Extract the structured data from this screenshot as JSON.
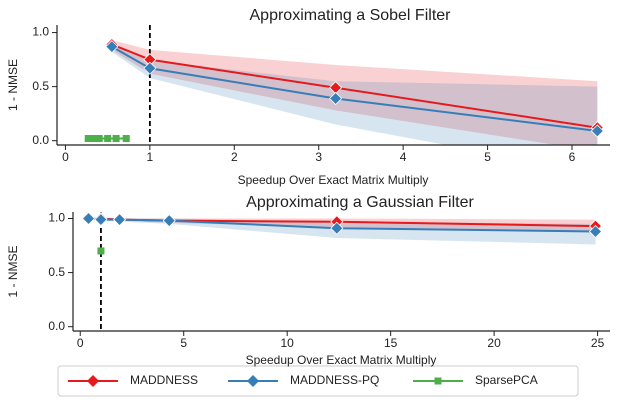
{
  "chart_data": [
    {
      "type": "line",
      "title": "Approximating a Sobel Filter",
      "xlabel": "Speedup Over Exact Matrix Multiply",
      "ylabel": "1 - NMSE",
      "xlim": [
        -0.1,
        6.45
      ],
      "ylim": [
        -0.04,
        1.07
      ],
      "xticks": [
        0,
        1,
        2,
        3,
        4,
        5,
        6
      ],
      "yticks": [
        {
          "value": 0,
          "label": "0.0"
        },
        {
          "value": 0.5,
          "label": "0.5"
        },
        {
          "value": 1,
          "label": "1.0"
        }
      ],
      "vline": 1,
      "legend": "below",
      "series": [
        {
          "name": "MADDNESS",
          "color": "#e41a1c",
          "marker": "diamond",
          "x": [
            0.55,
            1.0,
            3.2,
            6.3
          ],
          "values": [
            0.89,
            0.75,
            0.49,
            0.12
          ],
          "upper": [
            0.93,
            0.84,
            0.7,
            0.55
          ],
          "lower": [
            0.84,
            0.62,
            0.28,
            -0.1
          ]
        },
        {
          "name": "MADDNESS-PQ",
          "color": "#377eb8",
          "marker": "diamond",
          "x": [
            0.55,
            1.0,
            3.2,
            6.3
          ],
          "values": [
            0.87,
            0.67,
            0.39,
            0.09
          ],
          "upper": [
            0.89,
            0.74,
            0.55,
            0.5
          ],
          "lower": [
            0.82,
            0.58,
            0.15,
            -0.3
          ]
        },
        {
          "name": "SparsePCA",
          "color": "#4daf4a",
          "marker": "square",
          "x": [
            0.27,
            0.33,
            0.4,
            0.5,
            0.6,
            0.72
          ],
          "values": [
            0.02,
            0.02,
            0.02,
            0.02,
            0.02,
            0.02
          ]
        }
      ]
    },
    {
      "type": "line",
      "title": "Approximating a Gaussian Filter",
      "xlabel": "Speedup Over Exact Matrix Multiply",
      "ylabel": "1 - NMSE",
      "xlim": [
        -0.35,
        25.6
      ],
      "ylim": [
        -0.04,
        1.06
      ],
      "xticks": [
        0,
        5,
        10,
        15,
        20,
        25
      ],
      "yticks": [
        {
          "value": 0,
          "label": "0.0"
        },
        {
          "value": 0.5,
          "label": "0.5"
        },
        {
          "value": 1,
          "label": "1.0"
        }
      ],
      "vline": 1,
      "series": [
        {
          "color": "#e41a1c",
          "marker": "diamond",
          "x": [
            0.4,
            1.0,
            1.9,
            4.3,
            12.4,
            24.9
          ],
          "values": [
            1.0,
            1.0,
            0.99,
            0.98,
            0.97,
            0.93
          ],
          "upper": [
            1.0,
            1.0,
            1.0,
            1.0,
            1.0,
            0.99
          ],
          "lower": [
            0.99,
            0.99,
            0.98,
            0.96,
            0.92,
            0.88
          ]
        },
        {
          "color": "#377eb8",
          "marker": "diamond",
          "x": [
            0.4,
            1.0,
            1.9,
            4.3,
            12.4,
            24.9
          ],
          "values": [
            1.0,
            0.99,
            0.99,
            0.98,
            0.91,
            0.88
          ],
          "upper": [
            1.0,
            1.0,
            1.0,
            1.0,
            0.97,
            0.95
          ],
          "lower": [
            0.99,
            0.98,
            0.97,
            0.95,
            0.82,
            0.76
          ]
        },
        {
          "color": "#4daf4a",
          "marker": "square",
          "x": [
            1.0
          ],
          "values": [
            0.7
          ]
        }
      ]
    }
  ]
}
